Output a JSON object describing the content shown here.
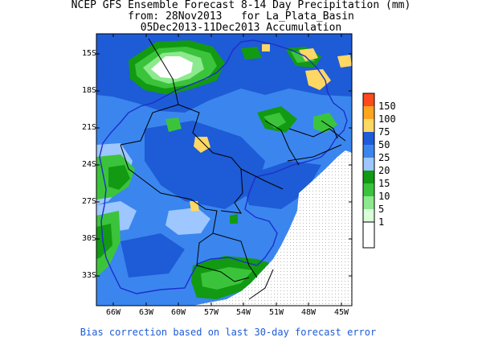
{
  "header": {
    "line1": "NCEP GFS Ensemble Forecast 8-14 Day Precipitation (mm)",
    "line2": "from: 28Nov2013   for La_Plata_Basin",
    "line3": "05Dec2013-11Dec2013 Accumulation"
  },
  "axes": {
    "y_labels": [
      "15S",
      "18S",
      "21S",
      "24S",
      "27S",
      "30S",
      "33S"
    ],
    "x_labels": [
      "66W",
      "63W",
      "60W",
      "57W",
      "54W",
      "51W",
      "48W",
      "45W"
    ]
  },
  "legend": {
    "levels": [
      "150",
      "100",
      "75",
      "50",
      "25",
      "20",
      "15",
      "10",
      "5",
      "1"
    ],
    "colors": [
      "#ff4a1c",
      "#ffa41f",
      "#ffd763",
      "#1e5bd6",
      "#3a86ee",
      "#9ec6ff",
      "#129a12",
      "#3bc43b",
      "#8de98d",
      "#d9ffd9"
    ]
  },
  "footer": {
    "note": "Bias correction based on last 30-day forecast error"
  },
  "colors": {
    "ocean_missing": "#ffffff",
    "boundary": "#1e2ecc",
    "borders": "#000000"
  }
}
